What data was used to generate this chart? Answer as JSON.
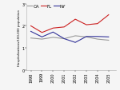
{
  "years": [
    1998,
    1999,
    2000,
    2001,
    2002,
    2003,
    2004,
    2005
  ],
  "CA": [
    1.45,
    1.4,
    1.48,
    1.42,
    1.55,
    1.5,
    1.4,
    1.35
  ],
  "FL": [
    2.0,
    1.7,
    1.9,
    1.95,
    2.3,
    2.05,
    2.1,
    2.5
  ],
  "NY": [
    1.75,
    1.5,
    1.72,
    1.42,
    1.25,
    1.52,
    1.52,
    1.5
  ],
  "CA_color": "#999999",
  "FL_color": "#cc2222",
  "NY_color": "#333399",
  "ylim": [
    0,
    3
  ],
  "yticks": [
    0,
    1,
    2,
    3
  ],
  "ylabel": "Hospitalizations/100,000 population",
  "legend_labels": [
    "CA",
    "FL",
    "NY"
  ],
  "background_color": "#f5f5f5",
  "linewidth": 0.8,
  "tick_fontsize": 3.5,
  "legend_fontsize": 4.0,
  "ylabel_fontsize": 2.8
}
